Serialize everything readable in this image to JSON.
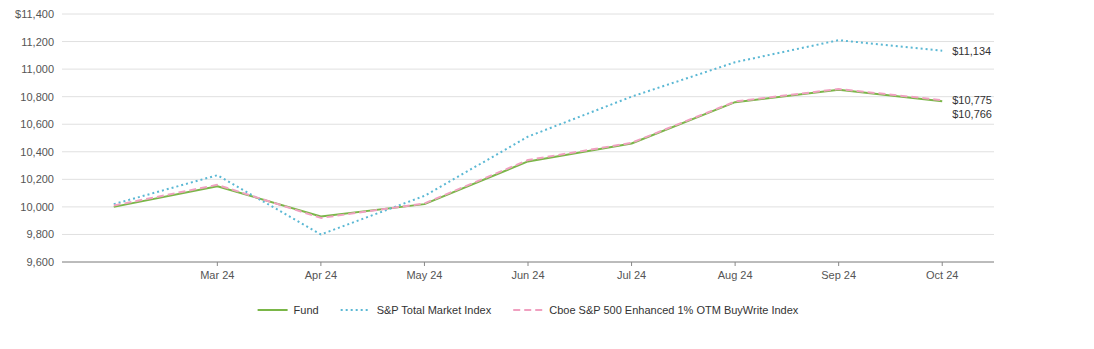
{
  "chart_data": {
    "type": "line",
    "categories": [
      null,
      "Mar 24",
      "Apr 24",
      "May 24",
      "Jun 24",
      "Jul 24",
      "Aug 24",
      "Sep 24",
      "Oct 24"
    ],
    "series": [
      {
        "name": "Fund",
        "color": "#7AB648",
        "line_style": "solid",
        "values": [
          10000,
          10150,
          9930,
          10020,
          10330,
          10460,
          10760,
          10850,
          10766
        ]
      },
      {
        "name": "S&P Total Market Index",
        "color": "#5BB8D4",
        "line_style": "dotted",
        "values": [
          10020,
          10230,
          9800,
          10080,
          10510,
          10800,
          11050,
          11210,
          11134
        ]
      },
      {
        "name": "Cboe S&P 500 Enhanced 1% OTM BuyWrite Index",
        "color": "#F0A0C0",
        "line_style": "dashed",
        "values": [
          10010,
          10160,
          9920,
          10025,
          10340,
          10465,
          10765,
          10855,
          10775
        ]
      }
    ],
    "ylim": [
      9600,
      11400
    ],
    "yticks": [
      {
        "value": 9600,
        "label": "9,600"
      },
      {
        "value": 9800,
        "label": "9,800"
      },
      {
        "value": 10000,
        "label": "10,000"
      },
      {
        "value": 10200,
        "label": "10,200"
      },
      {
        "value": 10400,
        "label": "10,400"
      },
      {
        "value": 10600,
        "label": "10,600"
      },
      {
        "value": 10800,
        "label": "10,800"
      },
      {
        "value": 11000,
        "label": "11,000"
      },
      {
        "value": 11200,
        "label": "11,200"
      },
      {
        "value": 11400,
        "label": "$11,400"
      }
    ],
    "annotations": [
      {
        "text": "$11,134",
        "x": "Oct 24",
        "y": 11134
      },
      {
        "text": "$10,775",
        "x": "Oct 24",
        "y": 10775
      },
      {
        "text": "$10,766",
        "x": "Oct 24",
        "y": 10766
      }
    ],
    "grid": true,
    "legend": "bottom"
  }
}
